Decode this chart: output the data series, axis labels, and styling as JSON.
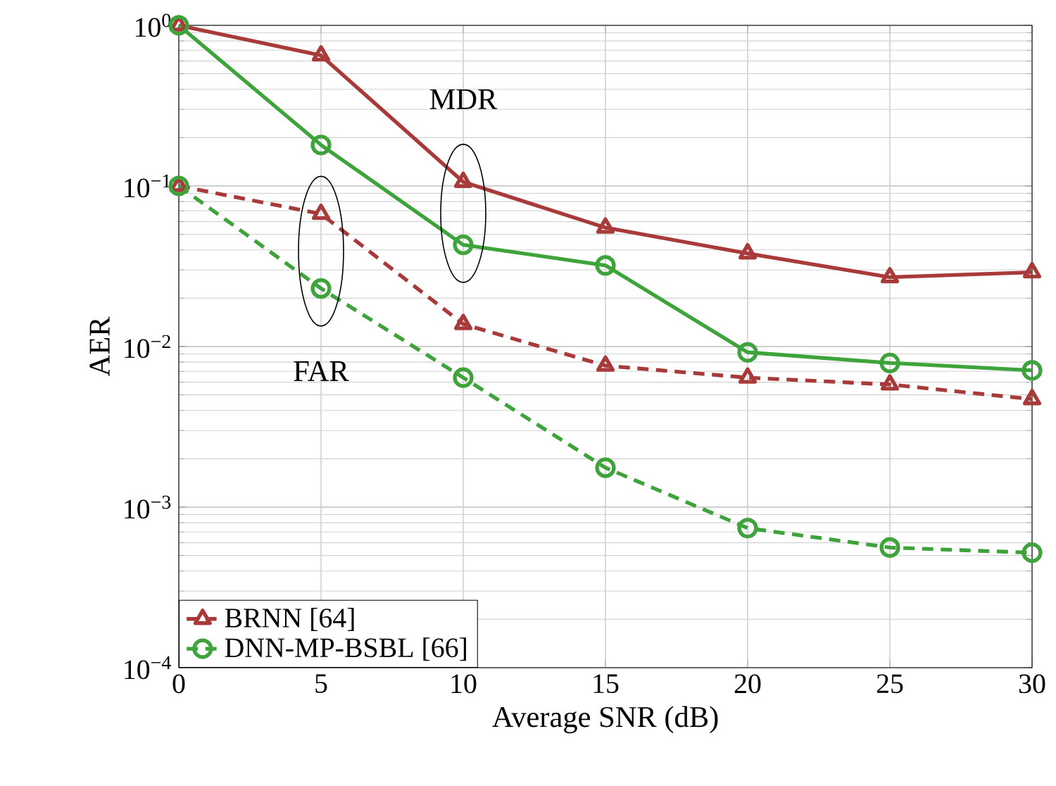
{
  "chart_data": {
    "type": "line",
    "xlabel": "Average SNR (dB)",
    "ylabel": "AER",
    "log": "y",
    "grid": true,
    "legend": "bottom left",
    "x": [
      0,
      5,
      10,
      15,
      20,
      25,
      30
    ],
    "xlim": [
      0,
      30
    ],
    "xticks": [
      0,
      5,
      10,
      15,
      20,
      25,
      30
    ],
    "ylim": [
      0.0001,
      1
    ],
    "yticks": [
      {
        "value": 0.0001,
        "label": "10$^{−4}$"
      },
      {
        "value": 0.001,
        "label": "10$^{−3}$"
      },
      {
        "value": 0.01,
        "label": "10$^{−2}$"
      },
      {
        "value": 0.1,
        "label": "10$^{−1}$"
      },
      {
        "value": 1,
        "label": "10$^{0}$"
      }
    ],
    "series": [
      {
        "color": "#a83a3a",
        "marker": "triangle",
        "line_style": "solid",
        "values": [
          1.0,
          0.65,
          0.106,
          0.055,
          0.038,
          0.027,
          0.029
        ]
      },
      {
        "color": "#3ea33a",
        "marker": "circle",
        "line_style": "solid",
        "values": [
          1.0,
          0.18,
          0.043,
          0.032,
          0.0092,
          0.0079,
          0.0071
        ]
      },
      {
        "name": "BRNN [64]",
        "color": "#a83a3a",
        "marker": "triangle",
        "line_style": "dashed",
        "values": [
          0.1,
          0.067,
          0.0138,
          0.0076,
          0.0064,
          0.0058,
          0.0047
        ]
      },
      {
        "name": "DNN-MP-BSBL [66]",
        "color": "#3ea33a",
        "marker": "circle",
        "line_style": "dashed",
        "values": [
          0.1,
          0.023,
          0.0064,
          0.00176,
          0.00074,
          0.00056,
          0.00052
        ]
      }
    ],
    "annotations": [
      "MDR",
      "FAR"
    ]
  }
}
